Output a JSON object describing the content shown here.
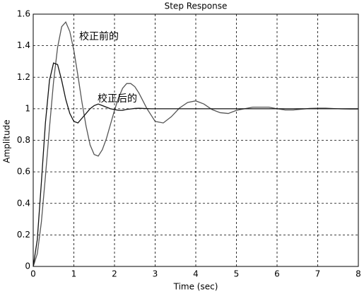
{
  "chart_data": {
    "type": "line",
    "title": "Step Response",
    "xlabel": "Time (sec)",
    "ylabel": "Amplitude",
    "x": [
      0,
      0.1,
      0.2,
      0.3,
      0.4,
      0.5,
      0.6,
      0.7,
      0.8,
      0.9,
      1.0,
      1.1,
      1.2,
      1.3,
      1.4,
      1.5,
      1.6,
      1.7,
      1.8,
      1.9,
      2.0,
      2.1,
      2.2,
      2.3,
      2.4,
      2.5,
      2.6,
      2.7,
      2.8,
      2.9,
      3.0,
      3.2,
      3.4,
      3.6,
      3.8,
      4.0,
      4.2,
      4.4,
      4.6,
      4.8,
      5.0,
      5.2,
      5.4,
      5.6,
      5.8,
      6.0,
      6.2,
      6.4,
      6.6,
      6.8,
      7.0,
      7.2,
      7.4,
      7.6,
      7.8,
      8.0
    ],
    "series": [
      {
        "name": "校正前的",
        "color": "#555555",
        "values": [
          0,
          0.08,
          0.28,
          0.57,
          0.88,
          1.17,
          1.39,
          1.52,
          1.55,
          1.49,
          1.37,
          1.21,
          1.04,
          0.89,
          0.77,
          0.71,
          0.7,
          0.74,
          0.81,
          0.9,
          0.99,
          1.07,
          1.13,
          1.16,
          1.16,
          1.14,
          1.1,
          1.05,
          1.0,
          0.96,
          0.92,
          0.91,
          0.95,
          1.005,
          1.04,
          1.05,
          1.03,
          0.995,
          0.975,
          0.97,
          0.99,
          1.0,
          1.01,
          1.01,
          1.01,
          1.0,
          0.992,
          0.992,
          0.997,
          1.002,
          1.004,
          1.004,
          1.001,
          0.999,
          0.998,
          0.998
        ]
      },
      {
        "name": "校正后的",
        "color": "#111111",
        "values": [
          0,
          0.17,
          0.53,
          0.91,
          1.18,
          1.29,
          1.28,
          1.18,
          1.06,
          0.97,
          0.92,
          0.91,
          0.94,
          0.97,
          1.0,
          1.02,
          1.03,
          1.02,
          1.01,
          1.0,
          0.995,
          0.99,
          0.99,
          0.996,
          0.999,
          1.002,
          1.003,
          1.002,
          1.001,
          1,
          1,
          1,
          1,
          1,
          1,
          1,
          1,
          1,
          1,
          1,
          1,
          1,
          1,
          1,
          1,
          1,
          1,
          1,
          1,
          1,
          1,
          1,
          1,
          1,
          1,
          1
        ]
      }
    ],
    "xlim": [
      0,
      8
    ],
    "xticks": [
      0,
      1,
      2,
      3,
      4,
      5,
      6,
      7,
      8
    ],
    "ylim": [
      0,
      1.6
    ],
    "yticks": [
      0,
      0.2,
      0.4,
      0.6,
      0.8,
      1,
      1.2,
      1.4,
      1.6
    ],
    "grid": true
  }
}
